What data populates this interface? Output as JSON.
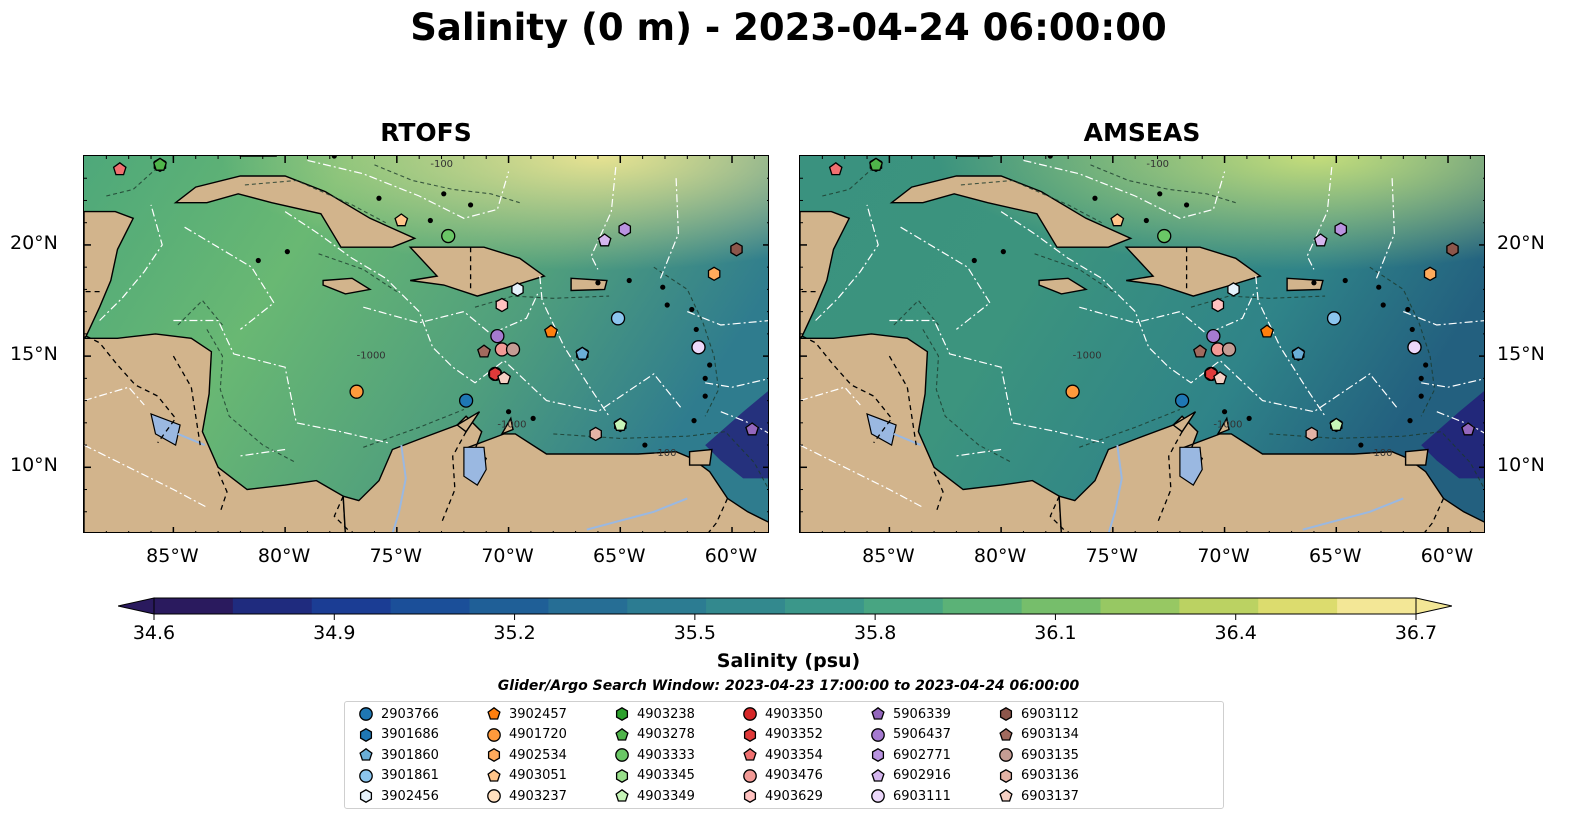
{
  "title": "Salinity (0 m) - 2023-04-24 06:00:00",
  "panels": [
    {
      "title": "RTOFS",
      "model": "rtofs"
    },
    {
      "title": "AMSEAS",
      "model": "amseas"
    }
  ],
  "longitude_ticks": [
    "85°W",
    "80°W",
    "75°W",
    "70°W",
    "65°W",
    "60°W"
  ],
  "longitude_values": [
    -85,
    -80,
    -75,
    -70,
    -65,
    -60
  ],
  "latitude_ticks": [
    "20°N",
    "15°N",
    "10°N"
  ],
  "latitude_values": [
    20,
    15,
    10
  ],
  "map_extent": {
    "lon": [
      -89,
      -58.3
    ],
    "lat": [
      7,
      24
    ]
  },
  "bathymetry_contour_labels": [
    "-100",
    "-1000",
    "-100",
    "-1000"
  ],
  "colorbar": {
    "label": "Salinity (psu)",
    "min": 34.6,
    "max": 36.7,
    "ticks": [
      "34.6",
      "34.9",
      "35.2",
      "35.5",
      "35.8",
      "36.1",
      "36.4",
      "36.7"
    ],
    "colormap": "haline",
    "colors": [
      "#2a1a5e",
      "#1f2b7e",
      "#1b3d94",
      "#1b4f99",
      "#1f5f97",
      "#266e95",
      "#2c7c92",
      "#33898e",
      "#3b978a",
      "#48a582",
      "#5bb277",
      "#76be6b",
      "#97c863",
      "#bbd262",
      "#dcdc6e",
      "#f3e796"
    ],
    "extend": "both"
  },
  "search_window": "Glider/Argo Search Window: 2023-04-23 17:00:00 to 2023-04-24 06:00:00",
  "colors": {
    "land": "#d2b48c",
    "lake": "#9ab8e1",
    "rtofs_sea": "#5aab74",
    "amseas_sea": "#3b937e",
    "eez_line": "#ffffff"
  },
  "legend": [
    {
      "id": "2903766",
      "marker": "circle",
      "color": "#1f77b4"
    },
    {
      "id": "3901686",
      "marker": "hexagon",
      "color": "#1f77b4"
    },
    {
      "id": "3901860",
      "marker": "pentagon",
      "color": "#6aaed6"
    },
    {
      "id": "3901861",
      "marker": "circle",
      "color": "#8cc5ee"
    },
    {
      "id": "3902456",
      "marker": "hexagon-open",
      "color": "#e6f2fb"
    },
    {
      "id": "3902457",
      "marker": "pentagon",
      "color": "#ff7f0e"
    },
    {
      "id": "4901720",
      "marker": "circle",
      "color": "#ff9a3c"
    },
    {
      "id": "4902534",
      "marker": "hexagon",
      "color": "#ffab5c"
    },
    {
      "id": "4903051",
      "marker": "pentagon",
      "color": "#ffc58a"
    },
    {
      "id": "4903237",
      "marker": "circle",
      "color": "#ffe0c0"
    },
    {
      "id": "4903238",
      "marker": "hexagon",
      "color": "#2ca02c"
    },
    {
      "id": "4903278",
      "marker": "pentagon",
      "color": "#4fb44a"
    },
    {
      "id": "4903333",
      "marker": "circle",
      "color": "#6ac766"
    },
    {
      "id": "4903345",
      "marker": "hexagon",
      "color": "#98df8a"
    },
    {
      "id": "4903349",
      "marker": "pentagon",
      "color": "#c7f5b8"
    },
    {
      "id": "4903350",
      "marker": "circle",
      "color": "#d62728"
    },
    {
      "id": "4903352",
      "marker": "hexagon",
      "color": "#e03a3a"
    },
    {
      "id": "4903354",
      "marker": "pentagon",
      "color": "#f07070"
    },
    {
      "id": "4903476",
      "marker": "circle",
      "color": "#f29a96"
    },
    {
      "id": "4903629",
      "marker": "hexagon",
      "color": "#ffc2c0"
    },
    {
      "id": "5906339",
      "marker": "pentagon",
      "color": "#9467bd"
    },
    {
      "id": "5906437",
      "marker": "circle",
      "color": "#a57ad0"
    },
    {
      "id": "6902771",
      "marker": "hexagon",
      "color": "#b993e0"
    },
    {
      "id": "6902916",
      "marker": "pentagon",
      "color": "#d5b6ee"
    },
    {
      "id": "6903111",
      "marker": "circle",
      "color": "#ecd8fa"
    },
    {
      "id": "6903112",
      "marker": "hexagon",
      "color": "#8c564b"
    },
    {
      "id": "6903134",
      "marker": "pentagon",
      "color": "#a16a5e"
    },
    {
      "id": "6903135",
      "marker": "circle",
      "color": "#c49c94"
    },
    {
      "id": "6903136",
      "marker": "hexagon",
      "color": "#e3b3a6"
    },
    {
      "id": "6903137",
      "marker": "pentagon",
      "color": "#f6d0c4"
    }
  ],
  "floats": [
    {
      "id": "2903766",
      "lon": -71.9,
      "lat": 13.0
    },
    {
      "id": "3901686",
      "lon": -66.7,
      "lat": 15.1
    },
    {
      "id": "3901860",
      "lon": -66.7,
      "lat": 15.1
    },
    {
      "id": "3901861",
      "lon": -65.1,
      "lat": 16.7
    },
    {
      "id": "3902456",
      "lon": -69.6,
      "lat": 18.0
    },
    {
      "id": "3902457",
      "lon": -68.1,
      "lat": 16.1
    },
    {
      "id": "4901720",
      "lon": -76.8,
      "lat": 13.4
    },
    {
      "id": "4902534",
      "lon": -60.8,
      "lat": 18.7
    },
    {
      "id": "4903051",
      "lon": -74.8,
      "lat": 21.1
    },
    {
      "id": "4903237",
      "lon": -61.5,
      "lat": 15.4
    },
    {
      "id": "4903238",
      "lon": -85.6,
      "lat": 23.6
    },
    {
      "id": "4903278",
      "lon": -85.6,
      "lat": 23.6
    },
    {
      "id": "4903333",
      "lon": -72.7,
      "lat": 20.4
    },
    {
      "id": "4903345",
      "lon": -65.0,
      "lat": 11.9
    },
    {
      "id": "4903349",
      "lon": -65.0,
      "lat": 11.9
    },
    {
      "id": "4903350",
      "lon": -70.6,
      "lat": 14.2
    },
    {
      "id": "4903352",
      "lon": -70.6,
      "lat": 14.2
    },
    {
      "id": "4903354",
      "lon": -87.4,
      "lat": 23.4
    },
    {
      "id": "4903476",
      "lon": -70.3,
      "lat": 15.3
    },
    {
      "id": "4903629",
      "lon": -70.3,
      "lat": 17.3
    },
    {
      "id": "5906339",
      "lon": -59.1,
      "lat": 11.7
    },
    {
      "id": "5906437",
      "lon": -70.5,
      "lat": 15.9
    },
    {
      "id": "6902771",
      "lon": -64.8,
      "lat": 20.7
    },
    {
      "id": "6902916",
      "lon": -65.7,
      "lat": 20.2
    },
    {
      "id": "6903111",
      "lon": -61.5,
      "lat": 15.4
    },
    {
      "id": "6903112",
      "lon": -59.8,
      "lat": 19.8
    },
    {
      "id": "6903134",
      "lon": -71.1,
      "lat": 15.2
    },
    {
      "id": "6903135",
      "lon": -69.8,
      "lat": 15.3
    },
    {
      "id": "6903136",
      "lon": -66.1,
      "lat": 11.5
    },
    {
      "id": "6903137",
      "lon": -70.2,
      "lat": 14.0
    }
  ]
}
